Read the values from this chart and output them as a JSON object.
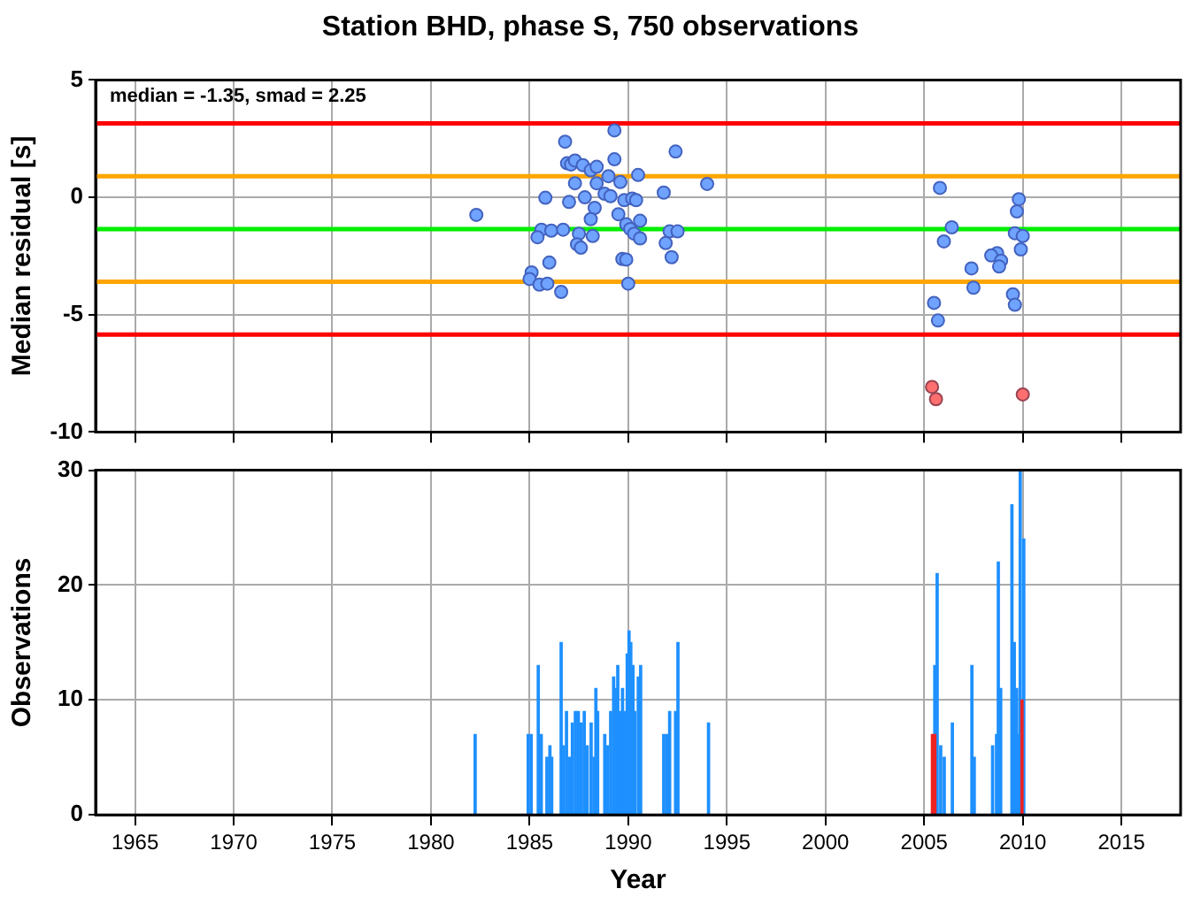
{
  "chart_data": [
    {
      "type": "scatter",
      "title": "Station BHD, phase S, 750 observations",
      "ylabel": "Median residual [s]",
      "annotations": [
        "median = -1.35, smad = 2.25"
      ],
      "xlim": [
        1963,
        2018
      ],
      "xticks": [
        1965,
        1970,
        1975,
        1980,
        1985,
        1990,
        1995,
        2000,
        2005,
        2010,
        2015
      ],
      "ylim": [
        -10,
        5
      ],
      "yticks": [
        -10,
        -5,
        0,
        5
      ],
      "grid": true,
      "legend": false,
      "tick_labels": "y",
      "marker": "circle",
      "series": [
        {
          "color": "#6fa3ff",
          "x": [
            1982.3,
            1989.3,
            1986.8,
            1992.4,
            1986.9,
            1987.1,
            1987.3,
            1987.7,
            1988.1,
            1988.4,
            1989.3,
            1989.0,
            1989.6,
            1987.3,
            1988.4,
            1990.5,
            1994.0,
            1991.8,
            1985.8,
            1987.0,
            1987.8,
            1988.8,
            1989.1,
            1989.8,
            1990.2,
            1990.4,
            1988.3,
            1989.5,
            1988.1,
            1990.6,
            1989.9,
            1990.1,
            1990.3,
            1990.6,
            1985.6,
            1985.4,
            1986.1,
            1986.7,
            1987.5,
            1988.2,
            1987.4,
            1987.6,
            1992.1,
            1992.5,
            1991.9,
            1992.2,
            1989.7,
            1989.9,
            1986.0,
            1985.1,
            1985.0,
            1985.5,
            1985.9,
            1990.0,
            1986.6,
            2005.8,
            2009.8,
            2009.7,
            2006.4,
            2009.6,
            2010.0,
            2006.0,
            2009.9,
            2008.7,
            2008.4,
            2008.9,
            2008.8,
            2007.4,
            2007.5,
            2005.5,
            2005.7,
            2009.5,
            2009.6
          ],
          "values": [
            -0.75,
            2.85,
            2.37,
            1.95,
            1.45,
            1.4,
            1.57,
            1.37,
            1.15,
            1.3,
            1.62,
            0.9,
            0.65,
            0.6,
            0.6,
            0.95,
            0.57,
            0.2,
            -0.02,
            -0.2,
            0,
            0.15,
            0.05,
            -0.12,
            -0.05,
            -0.12,
            -0.45,
            -0.72,
            -0.93,
            -1.0,
            -1.15,
            -1.35,
            -1.55,
            -1.75,
            -1.38,
            -1.7,
            -1.42,
            -1.38,
            -1.55,
            -1.65,
            -2.0,
            -2.15,
            -1.45,
            -1.45,
            -1.95,
            -2.55,
            -2.63,
            -2.65,
            -2.78,
            -3.2,
            -3.48,
            -3.72,
            -3.68,
            -3.68,
            -4.03,
            0.4,
            -0.08,
            -0.6,
            -1.28,
            -1.53,
            -1.65,
            -1.88,
            -2.22,
            -2.38,
            -2.48,
            -2.7,
            -2.95,
            -3.03,
            -3.85,
            -4.5,
            -5.25,
            -4.13,
            -4.58
          ]
        },
        {
          "color": "#ff6f6f",
          "x": [
            2005.4,
            2005.6,
            2010.0
          ],
          "values": [
            -8.08,
            -8.6,
            -8.4
          ]
        }
      ],
      "ref_lines": [
        {
          "axis": "y",
          "value": 3.15,
          "color": "#ff0000"
        },
        {
          "axis": "y",
          "value": 0.9,
          "color": "#ffa500"
        },
        {
          "axis": "y",
          "value": -1.35,
          "color": "#00ee00"
        },
        {
          "axis": "y",
          "value": -3.6,
          "color": "#ffa500"
        },
        {
          "axis": "y",
          "value": -5.85,
          "color": "#ff0000"
        }
      ]
    },
    {
      "type": "bar",
      "xlabel": "Year",
      "ylabel": "Observations",
      "xlim": [
        1963,
        2018
      ],
      "xticks": [
        1965,
        1970,
        1975,
        1980,
        1985,
        1990,
        1995,
        2000,
        2005,
        2010,
        2015
      ],
      "ylim": [
        0,
        30
      ],
      "yticks": [
        0,
        10,
        20,
        30
      ],
      "grid": true,
      "legend": false,
      "series": [
        {
          "color": "#1e90ff",
          "x": [
            1982.24,
            1984.93,
            1985.08,
            1985.44,
            1985.59,
            1985.88,
            1986.03,
            1986.12,
            1986.6,
            1986.72,
            1986.87,
            1987.02,
            1987.17,
            1987.32,
            1987.47,
            1987.62,
            1987.77,
            1987.92,
            1988.12,
            1988.27,
            1988.36,
            1988.45,
            1988.81,
            1988.96,
            1989.11,
            1989.26,
            1989.35,
            1989.47,
            1989.59,
            1989.71,
            1989.86,
            1989.95,
            1990.04,
            1990.13,
            1990.24,
            1990.33,
            1990.51,
            1990.63,
            1991.8,
            1991.95,
            1992.1,
            1992.4,
            1992.52,
            1994.07,
            2005.54,
            2005.66,
            2005.84,
            2006.02,
            2006.43,
            2007.42,
            2007.54,
            2008.47,
            2008.67,
            2008.76,
            2008.88,
            2009.45,
            2009.57,
            2009.69,
            2009.78,
            2009.87,
            2010.05
          ],
          "values": [
            7,
            7,
            7,
            13,
            7,
            5,
            6,
            5,
            15,
            6,
            9,
            5,
            8,
            9,
            9,
            8,
            9,
            6,
            8,
            5,
            11,
            9,
            7,
            6,
            9,
            12,
            11,
            13,
            9,
            11,
            9,
            14,
            16,
            15,
            13,
            9,
            12,
            13,
            7,
            7,
            9,
            9,
            15,
            8,
            13,
            21,
            6,
            5,
            8,
            13,
            5,
            6,
            7,
            22,
            11,
            27,
            15,
            11,
            7,
            30,
            24
          ]
        },
        {
          "color": "#ee2222",
          "x": [
            2005.42,
            2005.54,
            2009.96
          ],
          "values": [
            7,
            7,
            10
          ]
        }
      ]
    }
  ]
}
